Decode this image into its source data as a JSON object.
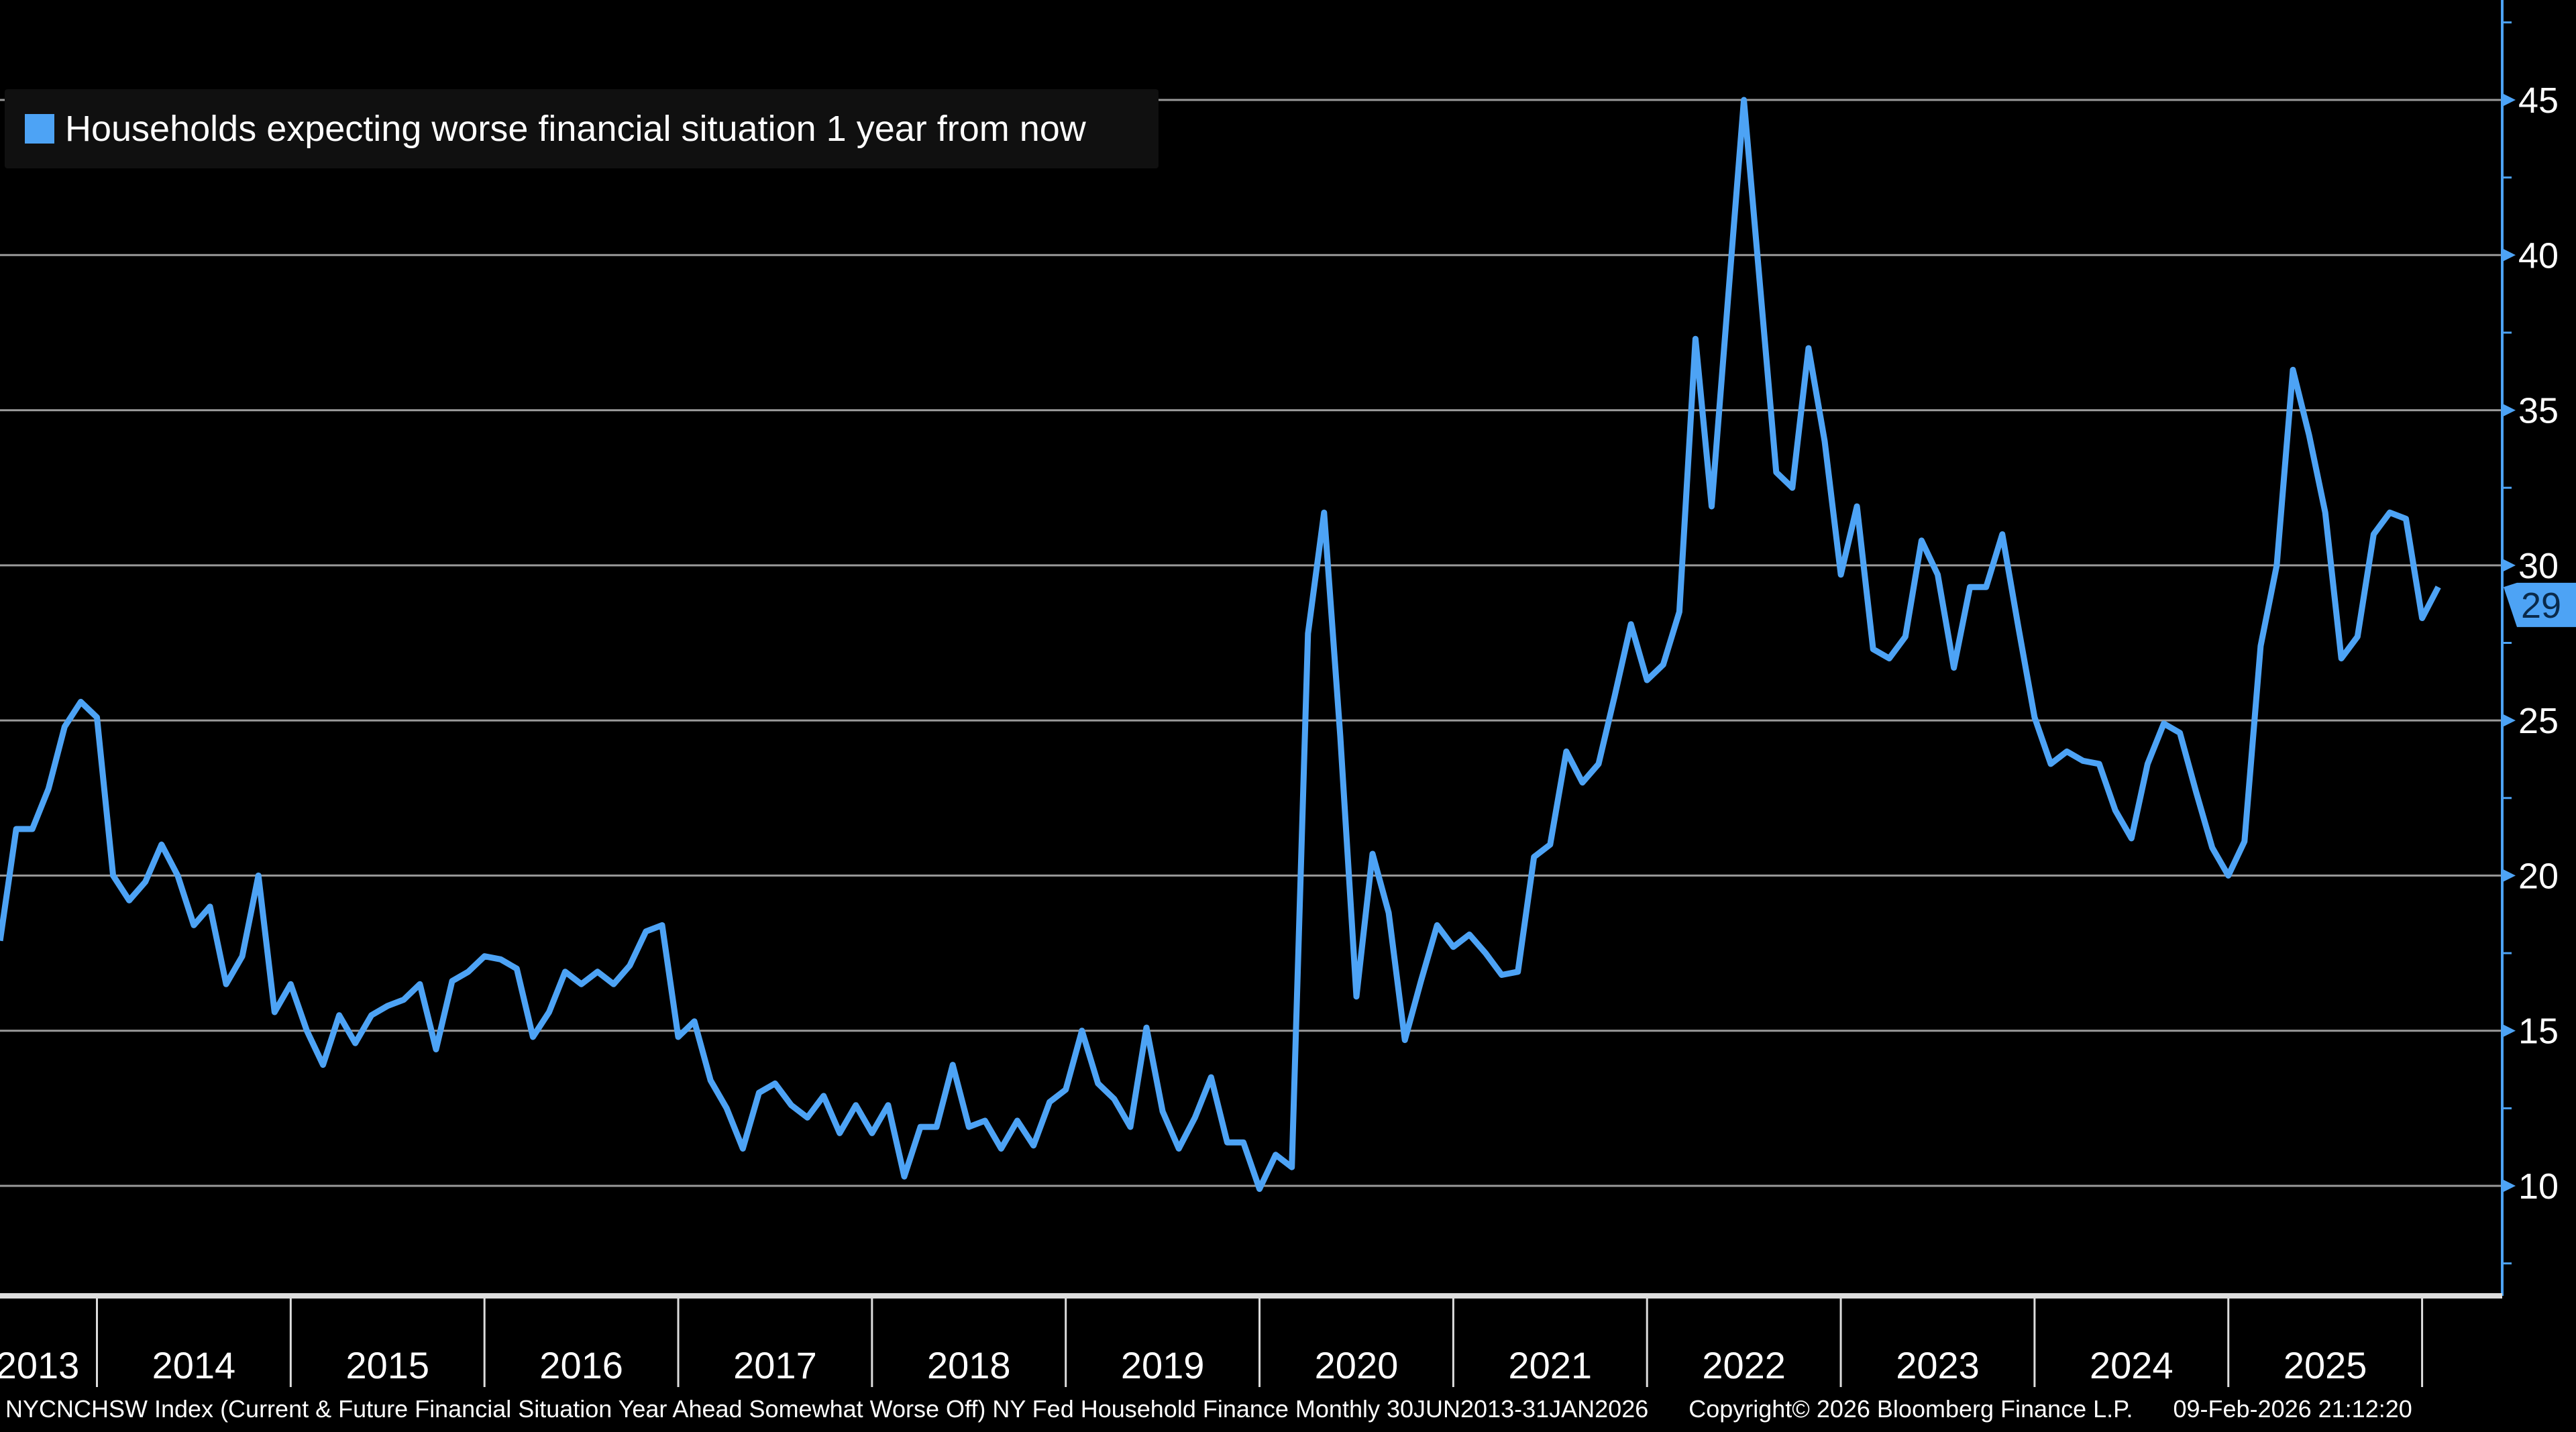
{
  "colors": {
    "background": "#000000",
    "series": "#4da3f5",
    "grid": "#9a9a9a",
    "axis": "#4da3f5",
    "text": "#ffffff"
  },
  "chart_data": {
    "type": "line",
    "title": "",
    "xlabel": "",
    "ylabel": "",
    "ylim": [
      7,
      49
    ],
    "y_ticks": [
      10,
      15,
      20,
      25,
      30,
      35,
      40,
      45
    ],
    "x_tick_labels": [
      "2013",
      "2014",
      "2015",
      "2016",
      "2017",
      "2018",
      "2019",
      "2020",
      "2021",
      "2022",
      "2023",
      "2024",
      "2025"
    ],
    "grid": true,
    "y_axis_side": "right",
    "legend_position": "top-left",
    "last_value_label": "29",
    "series": [
      {
        "name": "Households expecting worse financial situation 1 year from now",
        "start": "2013-06",
        "end": "2026-01",
        "frequency": "monthly",
        "values": [
          17.9,
          21.5,
          21.5,
          22.8,
          24.8,
          25.6,
          25.1,
          20.0,
          19.2,
          19.8,
          21.0,
          20.0,
          18.4,
          19.0,
          16.5,
          17.4,
          20.0,
          15.6,
          16.5,
          15.0,
          13.9,
          15.5,
          14.6,
          15.5,
          15.8,
          16.0,
          16.5,
          14.4,
          16.6,
          16.9,
          17.4,
          17.3,
          17.0,
          14.8,
          15.6,
          16.9,
          16.5,
          16.9,
          16.5,
          17.1,
          18.2,
          18.4,
          14.8,
          15.3,
          13.4,
          12.5,
          11.2,
          13.0,
          13.3,
          12.6,
          12.2,
          12.9,
          11.7,
          12.6,
          11.7,
          12.6,
          10.3,
          11.9,
          11.9,
          13.9,
          11.9,
          12.1,
          11.2,
          12.1,
          11.3,
          12.7,
          13.1,
          15.0,
          13.3,
          12.8,
          11.9,
          15.1,
          12.4,
          11.2,
          12.2,
          13.5,
          11.4,
          11.4,
          9.9,
          11.0,
          10.6,
          27.8,
          31.7,
          24.5,
          16.1,
          20.7,
          18.8,
          14.7,
          16.6,
          18.4,
          17.7,
          18.1,
          17.5,
          16.8,
          16.9,
          20.6,
          21.0,
          24.0,
          23.0,
          23.6,
          25.8,
          28.1,
          26.3,
          26.8,
          28.5,
          37.3,
          31.9,
          38.5,
          45.0,
          39.0,
          33.0,
          32.5,
          37.0,
          34.0,
          29.7,
          31.9,
          27.3,
          27.0,
          27.7,
          30.8,
          29.7,
          26.7,
          29.3,
          29.3,
          31.0,
          28.0,
          25.1,
          23.6,
          24.0,
          23.7,
          23.6,
          22.1,
          21.2,
          23.6,
          24.9,
          24.6,
          22.7,
          20.9,
          20.0,
          21.1,
          27.4,
          30.0,
          36.3,
          34.2,
          31.7,
          27.0,
          27.7,
          31.0,
          31.7,
          31.5,
          28.3,
          29.3
        ]
      }
    ]
  },
  "footer": {
    "description": "NYCNCHSW Index (Current & Future Financial Situation Year Ahead Somewhat Worse Off) NY Fed Household Finance Monthly 30JUN2013-31JAN2026",
    "copyright": "Copyright© 2026 Bloomberg Finance L.P.",
    "timestamp": "09-Feb-2026 21:12:20"
  }
}
